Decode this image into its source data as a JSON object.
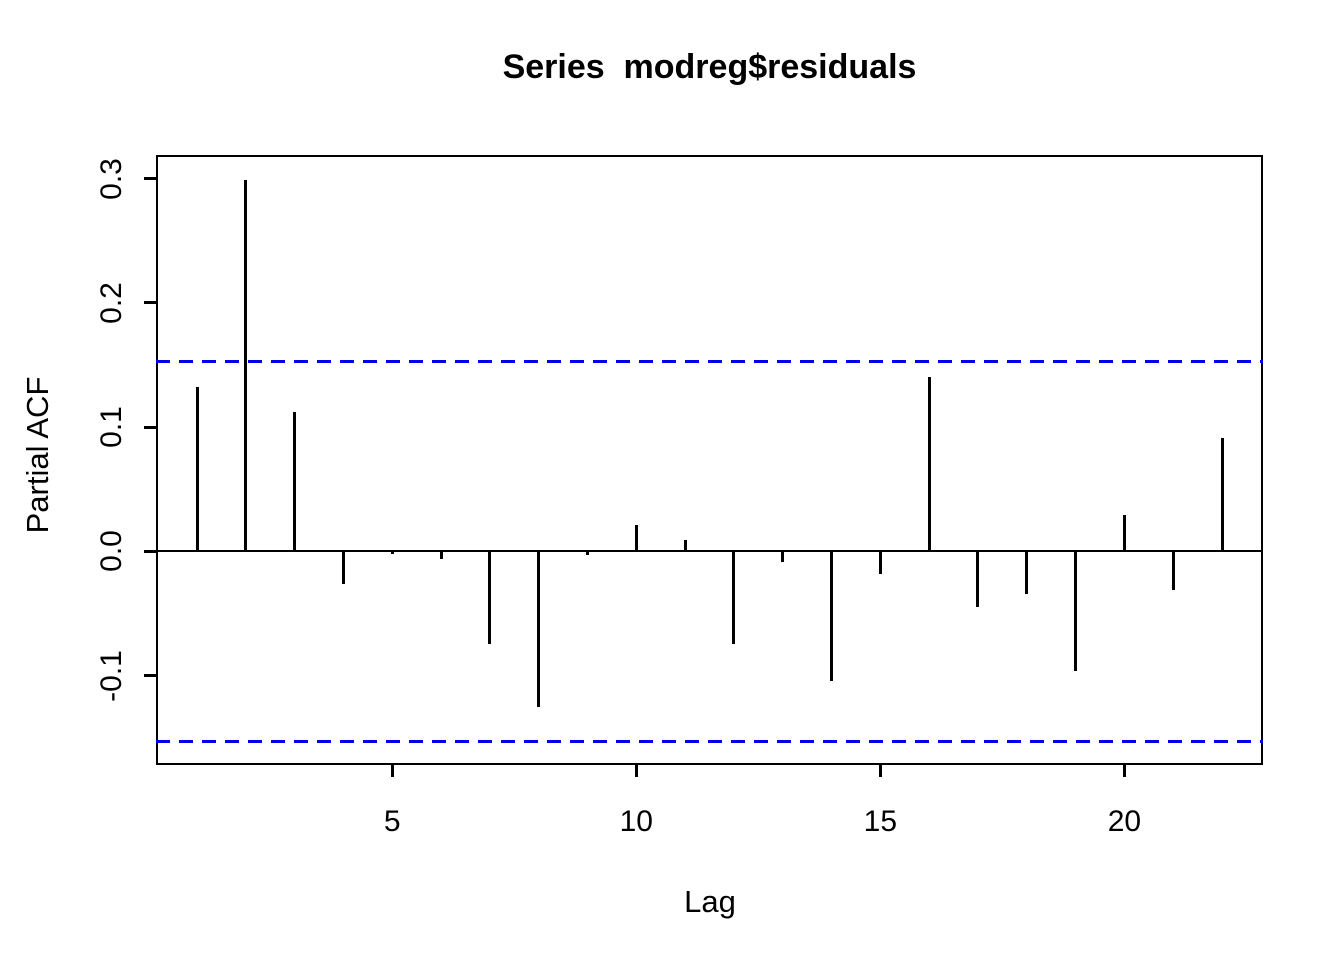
{
  "title": "Series  modreg$residuals",
  "chart_data": {
    "type": "bar",
    "subtype": "pacf-stick-plot",
    "title": "Series  modreg$residuals",
    "xlabel": "Lag",
    "ylabel": "Partial ACF",
    "x": [
      1,
      2,
      3,
      4,
      5,
      6,
      7,
      8,
      9,
      10,
      11,
      12,
      13,
      14,
      15,
      16,
      17,
      18,
      19,
      20,
      21,
      22
    ],
    "values": [
      0.132,
      0.299,
      0.112,
      -0.026,
      -0.002,
      -0.006,
      -0.075,
      -0.125,
      -0.003,
      0.021,
      0.009,
      -0.075,
      -0.009,
      -0.104,
      -0.018,
      0.14,
      -0.045,
      -0.034,
      -0.096,
      0.029,
      -0.031,
      0.091
    ],
    "confidence_upper": 0.153,
    "confidence_lower": -0.153,
    "zero_line": 0,
    "xlim": [
      0.16,
      22.84
    ],
    "ylim": [
      -0.172,
      0.319
    ],
    "x_ticks": [
      5,
      10,
      15,
      20
    ],
    "x_tick_labels": [
      "5",
      "10",
      "15",
      "20"
    ],
    "y_ticks": [
      -0.1,
      0.0,
      0.1,
      0.2,
      0.3
    ],
    "y_tick_labels": [
      "-0.1",
      "0.0",
      "0.1",
      "0.2",
      "0.3"
    ],
    "grid": false,
    "legend_position": "none",
    "bar_color": "#000000",
    "ci_color": "#0000EE",
    "ci_style": "dashed"
  }
}
